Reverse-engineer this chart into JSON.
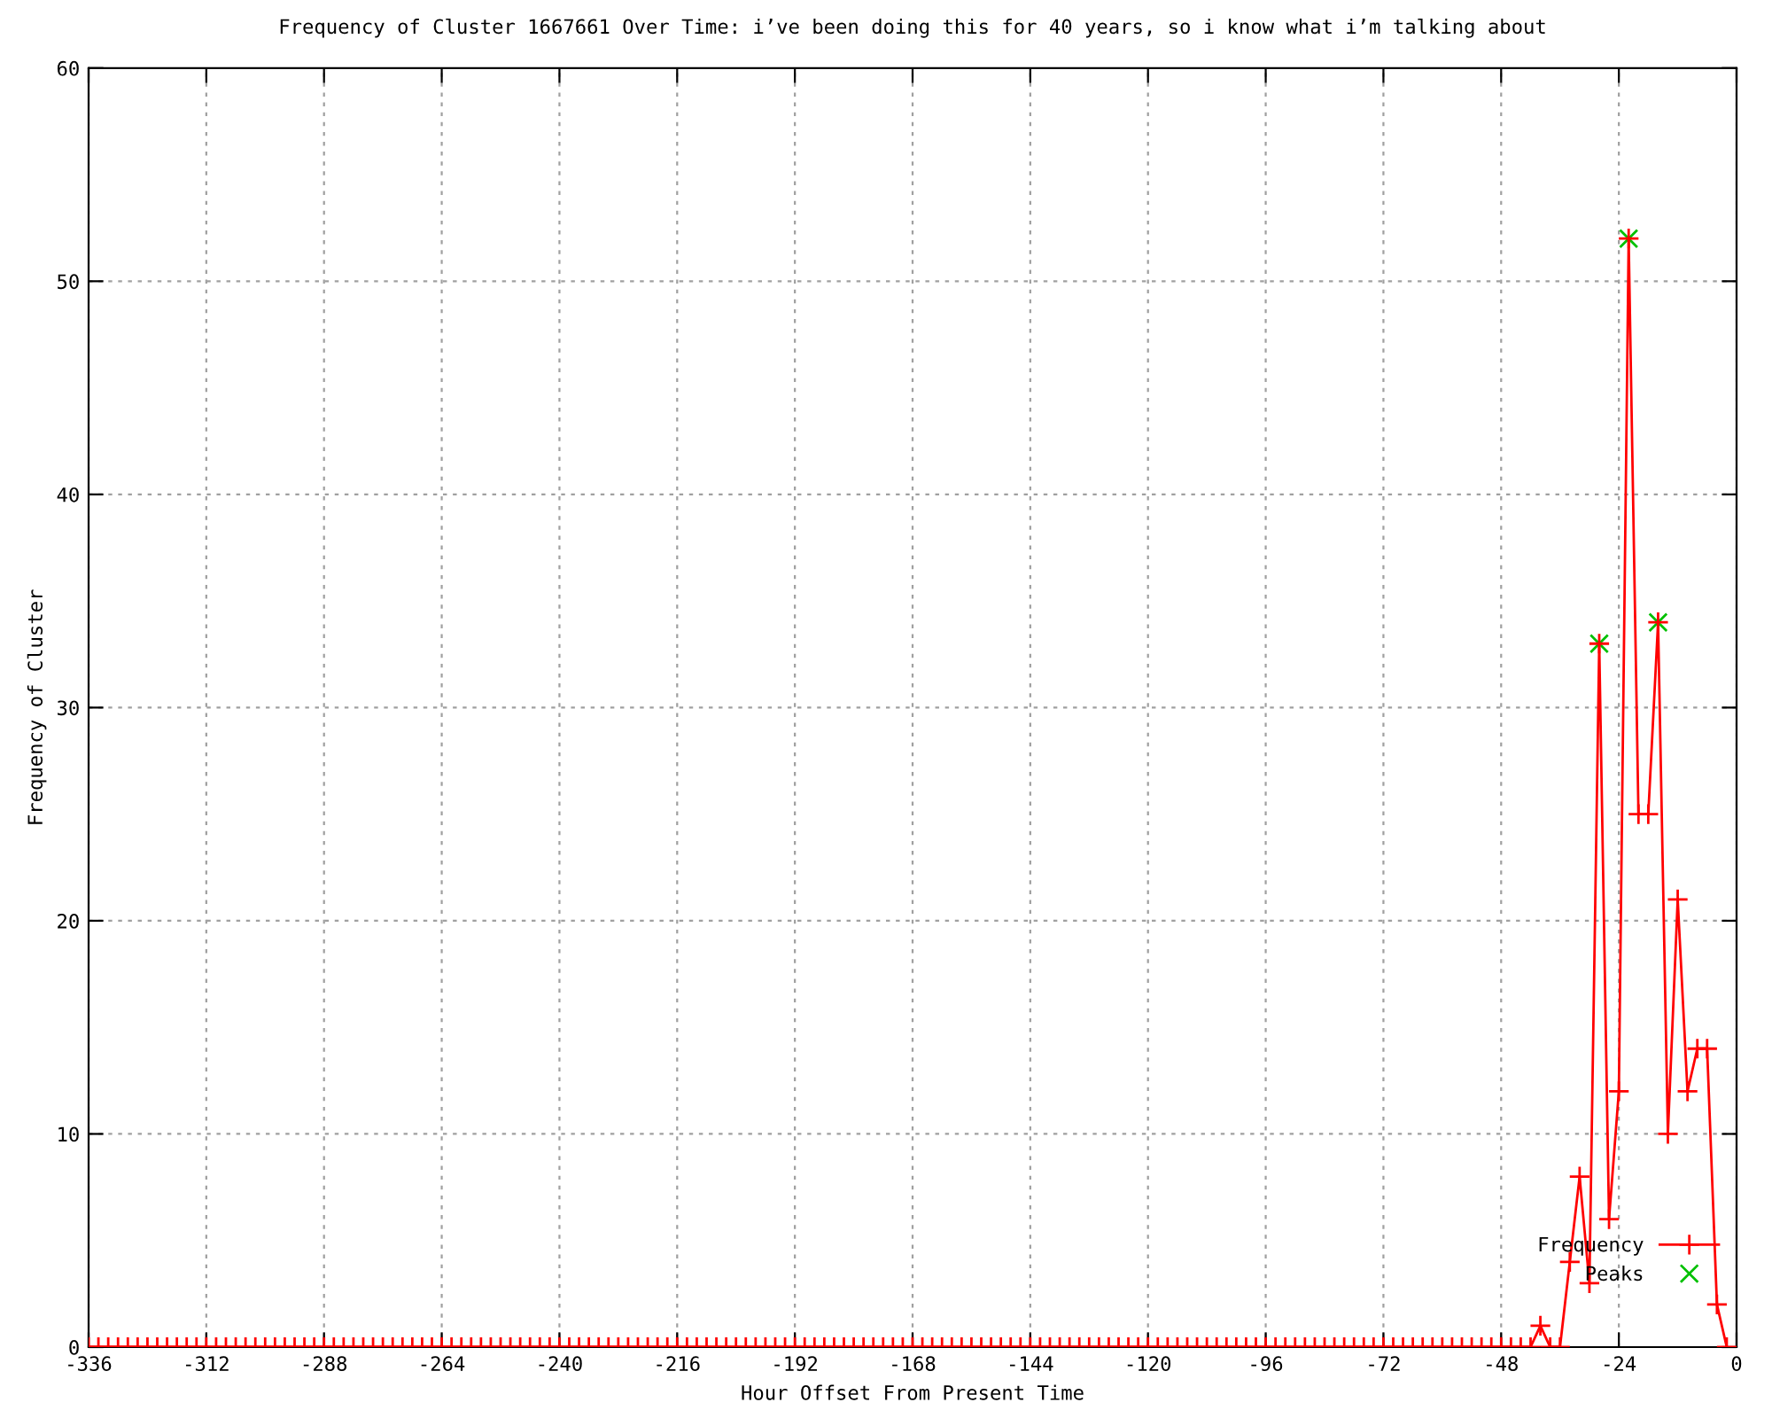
{
  "chart_data": {
    "type": "line",
    "title": "Frequency of Cluster 1667661 Over Time: i’ve been doing this for 40 years, so i know what i’m talking about",
    "xlabel": "Hour Offset From Present Time",
    "ylabel": "Frequency of Cluster",
    "xlim": [
      -336,
      0
    ],
    "xticks": [
      -336,
      -312,
      -288,
      -264,
      -240,
      -216,
      -192,
      -168,
      -144,
      -120,
      -96,
      -72,
      -48,
      -24,
      0
    ],
    "ylim": [
      0,
      60
    ],
    "yticks": [
      0,
      10,
      20,
      30,
      40,
      50,
      60
    ],
    "grid": true,
    "legend": "bottom right",
    "series": [
      {
        "name": "Frequency",
        "color": "#ff0000",
        "marker": "cross",
        "line_style": "solid",
        "x": [
          -336,
          -334,
          -332,
          -330,
          -328,
          -326,
          -324,
          -322,
          -320,
          -318,
          -316,
          -314,
          -312,
          -310,
          -308,
          -306,
          -304,
          -302,
          -300,
          -298,
          -296,
          -294,
          -292,
          -290,
          -288,
          -286,
          -284,
          -282,
          -280,
          -278,
          -276,
          -274,
          -272,
          -270,
          -268,
          -266,
          -264,
          -262,
          -260,
          -258,
          -256,
          -254,
          -252,
          -250,
          -248,
          -246,
          -244,
          -242,
          -240,
          -238,
          -236,
          -234,
          -232,
          -230,
          -228,
          -226,
          -224,
          -222,
          -220,
          -218,
          -216,
          -214,
          -212,
          -210,
          -208,
          -206,
          -204,
          -202,
          -200,
          -198,
          -196,
          -194,
          -192,
          -190,
          -188,
          -186,
          -184,
          -182,
          -180,
          -178,
          -176,
          -174,
          -172,
          -170,
          -168,
          -166,
          -164,
          -162,
          -160,
          -158,
          -156,
          -154,
          -152,
          -150,
          -148,
          -146,
          -144,
          -142,
          -140,
          -138,
          -136,
          -134,
          -132,
          -130,
          -128,
          -126,
          -124,
          -122,
          -120,
          -118,
          -116,
          -114,
          -112,
          -110,
          -108,
          -106,
          -104,
          -102,
          -100,
          -98,
          -96,
          -94,
          -92,
          -90,
          -88,
          -86,
          -84,
          -82,
          -80,
          -78,
          -76,
          -74,
          -72,
          -70,
          -68,
          -66,
          -64,
          -62,
          -60,
          -58,
          -56,
          -54,
          -52,
          -50,
          -48,
          -46,
          -44,
          -42,
          -40,
          -38,
          -36,
          -34,
          -32,
          -30,
          -28,
          -26,
          -24,
          -22,
          -20,
          -18,
          -16,
          -14,
          -12,
          -10,
          -8,
          -6,
          -4,
          -2
        ],
        "values": [
          0,
          0,
          0,
          0,
          0,
          0,
          0,
          0,
          0,
          0,
          0,
          0,
          0,
          0,
          0,
          0,
          0,
          0,
          0,
          0,
          0,
          0,
          0,
          0,
          0,
          0,
          0,
          0,
          0,
          0,
          0,
          0,
          0,
          0,
          0,
          0,
          0,
          0,
          0,
          0,
          0,
          0,
          0,
          0,
          0,
          0,
          0,
          0,
          0,
          0,
          0,
          0,
          0,
          0,
          0,
          0,
          0,
          0,
          0,
          0,
          0,
          0,
          0,
          0,
          0,
          0,
          0,
          0,
          0,
          0,
          0,
          0,
          0,
          0,
          0,
          0,
          0,
          0,
          0,
          0,
          0,
          0,
          0,
          0,
          0,
          0,
          0,
          0,
          0,
          0,
          0,
          0,
          0,
          0,
          0,
          0,
          0,
          0,
          0,
          0,
          0,
          0,
          0,
          0,
          0,
          0,
          0,
          0,
          0,
          0,
          0,
          0,
          0,
          0,
          0,
          0,
          0,
          0,
          0,
          0,
          0,
          0,
          0,
          0,
          0,
          0,
          0,
          0,
          0,
          0,
          0,
          0,
          0,
          0,
          0,
          0,
          0,
          0,
          0,
          0,
          0,
          0,
          0,
          0,
          0,
          0,
          0,
          0,
          1,
          0,
          0,
          4,
          8,
          3,
          33,
          6,
          12,
          52,
          25,
          25,
          34,
          10,
          21,
          12,
          14,
          14,
          2,
          0
        ]
      },
      {
        "name": "Peaks",
        "type": "scatter",
        "color": "#00c000",
        "marker": "cross",
        "x": [
          -28,
          -22,
          -16
        ],
        "values": [
          33,
          52,
          34
        ]
      }
    ]
  }
}
